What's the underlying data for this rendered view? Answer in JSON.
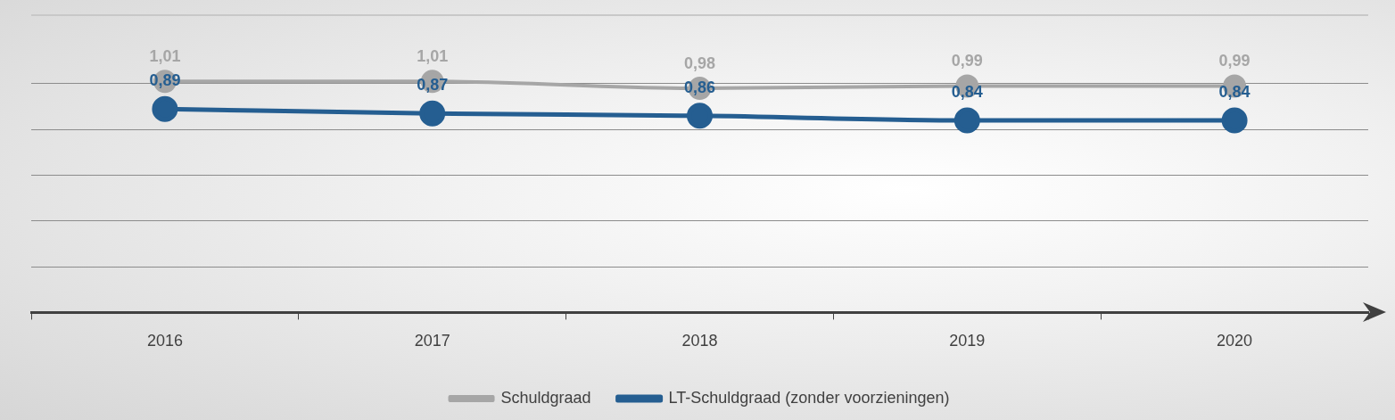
{
  "chart_data": {
    "type": "line",
    "categories": [
      "2016",
      "2017",
      "2018",
      "2019",
      "2020"
    ],
    "series": [
      {
        "name": "Schuldgraad",
        "color": "#a6a6a6",
        "values": [
          1.01,
          1.01,
          0.98,
          0.99,
          0.99
        ],
        "value_labels": [
          "1,01",
          "1,01",
          "0,98",
          "0,99",
          "0,99"
        ]
      },
      {
        "name": "LT-Schuldgraad (zonder voorzieningen)",
        "color": "#255e91",
        "values": [
          0.89,
          0.87,
          0.86,
          0.84,
          0.84
        ],
        "value_labels": [
          "0,89",
          "0,87",
          "0,86",
          "0,84",
          "0,84"
        ]
      }
    ],
    "ylim": [
      0,
      1.3
    ],
    "yticks": [
      0,
      0.2,
      0.4,
      0.6,
      0.8,
      1.0
    ],
    "tick_labels": "x",
    "grid": "y",
    "legend": "bottom",
    "marker": "circle",
    "line_style": "solid"
  }
}
